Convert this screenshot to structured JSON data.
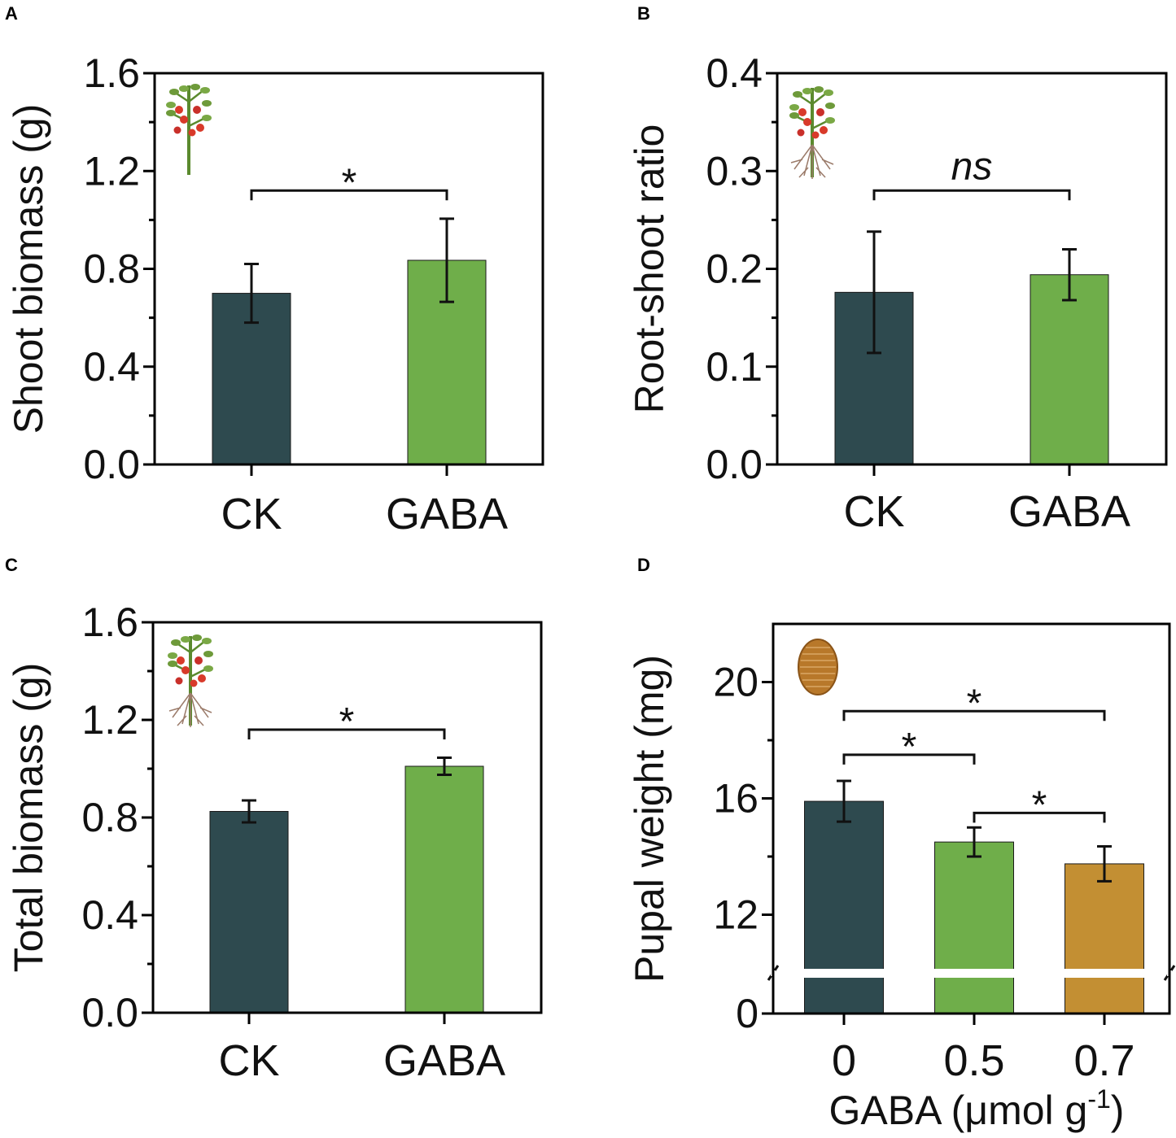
{
  "colors": {
    "ck": "#2e4a4f",
    "gaba05": "#6fae4a",
    "gaba07": "#c38f33",
    "axis": "#000000"
  },
  "chart_data": [
    {
      "panel": "A",
      "type": "bar",
      "ylabel": "Shoot biomass (g)",
      "xlabel": "",
      "categories": [
        "CK",
        "GABA"
      ],
      "values": [
        0.7,
        0.835
      ],
      "errors": [
        0.12,
        0.17
      ],
      "ylim": [
        0,
        1.6
      ],
      "yticks": [
        0.0,
        0.4,
        0.8,
        1.2,
        1.6
      ],
      "ytick_labels": [
        "0.0",
        "0.4",
        "0.8",
        "1.2",
        "1.6"
      ],
      "colors": [
        "#2e4a4f",
        "#6fae4a"
      ],
      "icon": "tomato-shoot-icon",
      "brackets": [
        {
          "from": 0,
          "to": 1,
          "y": 1.12,
          "label": "*"
        }
      ]
    },
    {
      "panel": "B",
      "type": "bar",
      "ylabel": "Root-shoot ratio",
      "xlabel": "",
      "categories": [
        "CK",
        "GABA"
      ],
      "values": [
        0.176,
        0.194
      ],
      "errors": [
        0.062,
        0.026
      ],
      "ylim": [
        0,
        0.4
      ],
      "yticks": [
        0.0,
        0.1,
        0.2,
        0.3,
        0.4
      ],
      "ytick_labels": [
        "0.0",
        "0.1",
        "0.2",
        "0.3",
        "0.4"
      ],
      "colors": [
        "#2e4a4f",
        "#6fae4a"
      ],
      "icon": "tomato-plant-with-roots-icon",
      "brackets": [
        {
          "from": 0,
          "to": 1,
          "y": 0.28,
          "label": "ns",
          "italic": true
        }
      ]
    },
    {
      "panel": "C",
      "type": "bar",
      "ylabel": "Total biomass (g)",
      "xlabel": "",
      "categories": [
        "CK",
        "GABA"
      ],
      "values": [
        0.825,
        1.01
      ],
      "errors": [
        0.045,
        0.035
      ],
      "ylim": [
        0,
        1.6
      ],
      "yticks": [
        0.0,
        0.4,
        0.8,
        1.2,
        1.6
      ],
      "ytick_labels": [
        "0.0",
        "0.4",
        "0.8",
        "1.2",
        "1.6"
      ],
      "colors": [
        "#2e4a4f",
        "#6fae4a"
      ],
      "icon": "tomato-plant-with-roots-icon",
      "brackets": [
        {
          "from": 0,
          "to": 1,
          "y": 1.16,
          "label": "*"
        }
      ]
    },
    {
      "panel": "D",
      "type": "bar",
      "ylabel": "Pupal weight (mg)",
      "xlabel": "GABA (μmol g",
      "xlabel_sup": "-1",
      "xlabel_end": ")",
      "categories": [
        "0",
        "0.5",
        "0.7"
      ],
      "values": [
        15.9,
        14.5,
        13.75
      ],
      "errors": [
        0.7,
        0.5,
        0.6
      ],
      "ylim": [
        0,
        22
      ],
      "axis_break": true,
      "yticks": [
        0,
        12,
        16,
        20
      ],
      "ytick_labels": [
        "0",
        "12",
        "16",
        "20"
      ],
      "colors": [
        "#2e4a4f",
        "#6fae4a",
        "#c38f33"
      ],
      "icon": "pupa-icon",
      "brackets": [
        {
          "from": 0,
          "to": 2,
          "y": 19.0,
          "label": "*"
        },
        {
          "from": 0,
          "to": 1,
          "y": 17.5,
          "label": "*"
        },
        {
          "from": 1,
          "to": 2,
          "y": 15.5,
          "label": "*"
        }
      ]
    }
  ]
}
